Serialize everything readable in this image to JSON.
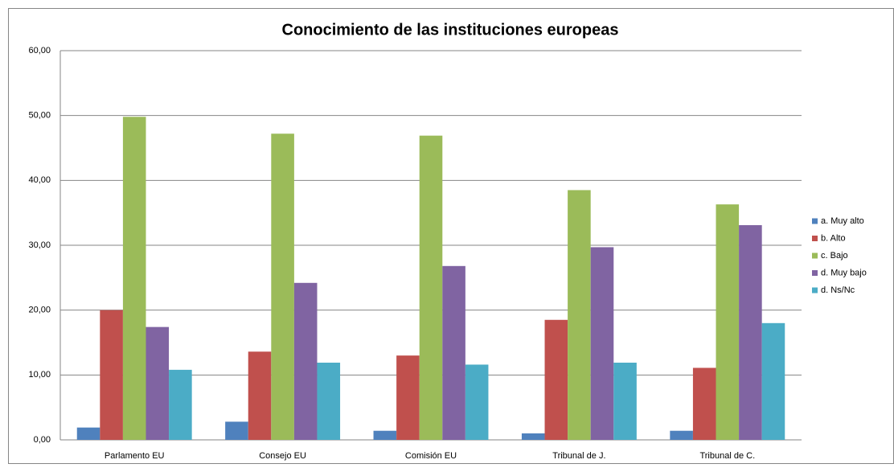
{
  "chart_data": {
    "type": "bar",
    "title": "Conocimiento de las instituciones europeas",
    "categories": [
      "Parlamento EU",
      "Consejo EU",
      "Comisión EU",
      "Tribunal de J.",
      "Tribunal de C."
    ],
    "series": [
      {
        "name": "a. Muy alto",
        "color": "#4f81bd",
        "values": [
          1.9,
          2.8,
          1.4,
          1.0,
          1.4
        ]
      },
      {
        "name": "b. Alto",
        "color": "#c0504d",
        "values": [
          20.0,
          13.6,
          13.0,
          18.5,
          11.1
        ]
      },
      {
        "name": "c. Bajo",
        "color": "#9bbb59",
        "values": [
          49.8,
          47.2,
          46.9,
          38.5,
          36.3
        ]
      },
      {
        "name": "d. Muy bajo",
        "color": "#8064a2",
        "values": [
          17.4,
          24.2,
          26.8,
          29.7,
          33.1
        ]
      },
      {
        "name": "d. Ns/Nc",
        "color": "#4bacc6",
        "values": [
          10.8,
          11.9,
          11.6,
          11.9,
          18.0
        ]
      }
    ],
    "ylim": [
      0,
      60
    ],
    "yticks": [
      {
        "value": 0,
        "label": "0,00"
      },
      {
        "value": 10,
        "label": "10,00"
      },
      {
        "value": 20,
        "label": "20,00"
      },
      {
        "value": 30,
        "label": "30,00"
      },
      {
        "value": 40,
        "label": "40,00"
      },
      {
        "value": 50,
        "label": "50,00"
      },
      {
        "value": 60,
        "label": "60,00"
      }
    ],
    "grid": true,
    "legend": "right"
  }
}
